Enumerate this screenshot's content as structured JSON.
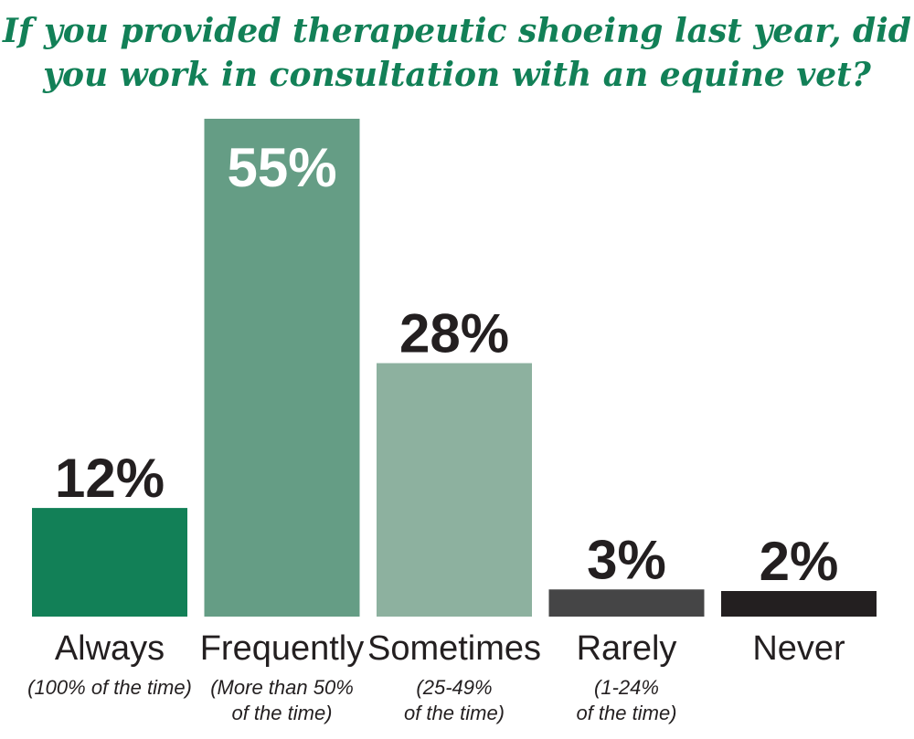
{
  "chart_data": {
    "type": "bar",
    "title": [
      "If you provided therapeutic shoeing last year, did",
      "you work in consultation with an equine vet?"
    ],
    "categories": [
      "Always",
      "Frequently",
      "Sometimes",
      "Rarely",
      "Never"
    ],
    "sublabels": [
      [
        "(100% of the time)"
      ],
      [
        "(More than 50%",
        "of the time)"
      ],
      [
        "(25-49%",
        "of the time)"
      ],
      [
        "(1-24%",
        "of the time)"
      ],
      []
    ],
    "values": [
      12,
      55,
      28,
      3,
      2
    ],
    "value_labels": [
      "12%",
      "55%",
      "28%",
      "3%",
      "2%"
    ],
    "value_label_inside": [
      false,
      true,
      false,
      false,
      false
    ],
    "colors": [
      "#128057",
      "#659d85",
      "#8db19f",
      "#454546",
      "#231f20"
    ],
    "value_label_colors": [
      "#231f20",
      "#ffffff",
      "#231f20",
      "#231f20",
      "#231f20"
    ],
    "ylim": [
      0,
      55
    ],
    "grid": false
  }
}
